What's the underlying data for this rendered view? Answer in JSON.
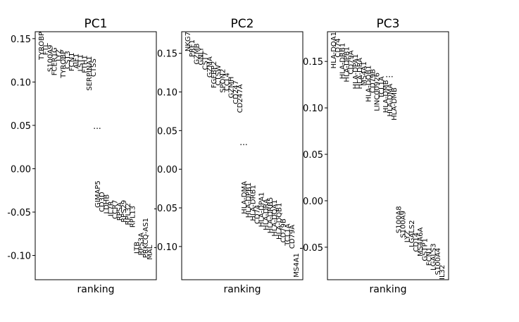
{
  "chart_data": [
    {
      "type": "scatter",
      "title": "PC1",
      "xlabel": "ranking",
      "ylabel": "",
      "ylim": [
        -0.128,
        0.158
      ],
      "yticks": [
        -0.1,
        -0.05,
        0.0,
        0.05,
        0.1,
        0.15
      ],
      "ytick_labels": [
        "-0.10",
        "-0.05",
        "0.00",
        "0.05",
        "0.10",
        "0.15"
      ],
      "ellipsis": "...",
      "genes": [
        {
          "name": "TYROBP",
          "rank": 1,
          "value": 0.158
        },
        {
          "name": "FTL",
          "rank": 2,
          "value": 0.145
        },
        {
          "name": "S100A9",
          "rank": 3,
          "value": 0.143
        },
        {
          "name": "FCER1G",
          "rank": 4,
          "value": 0.14
        },
        {
          "name": "LYZ",
          "rank": 5,
          "value": 0.138
        },
        {
          "name": "TYROBP",
          "rank": 6,
          "value": 0.137
        },
        {
          "name": "CST3",
          "rank": 7,
          "value": 0.136
        },
        {
          "name": "FCN1",
          "rank": 8,
          "value": 0.134
        },
        {
          "name": "AIF1",
          "rank": 9,
          "value": 0.133
        },
        {
          "name": "LST1",
          "rank": 10,
          "value": 0.132
        },
        {
          "name": "FTH1",
          "rank": 11,
          "value": 0.131
        },
        {
          "name": "SERPINA1",
          "rank": 12,
          "value": 0.13
        },
        {
          "name": "CTSS",
          "rank": 13,
          "value": 0.127
        },
        {
          "name": "GIMAP5",
          "rank": 14,
          "value": -0.045
        },
        {
          "name": "CD3D",
          "rank": 15,
          "value": -0.05
        },
        {
          "name": "LDHB",
          "rank": 16,
          "value": -0.052
        },
        {
          "name": "IL7R",
          "rank": 17,
          "value": -0.055
        },
        {
          "name": "CCR7",
          "rank": 18,
          "value": -0.058
        },
        {
          "name": "RPSA",
          "rank": 19,
          "value": -0.06
        },
        {
          "name": "RPS29",
          "rank": 20,
          "value": -0.062
        },
        {
          "name": "RPL32",
          "rank": 21,
          "value": -0.065
        },
        {
          "name": "RPL13",
          "rank": 22,
          "value": -0.068
        },
        {
          "name": "LTB",
          "rank": 23,
          "value": -0.098
        },
        {
          "name": "RPS3A",
          "rank": 24,
          "value": -0.1
        },
        {
          "name": "PRKCQ-AS1",
          "rank": 25,
          "value": -0.103
        },
        {
          "name": "MAL",
          "rank": 26,
          "value": -0.105
        }
      ]
    },
    {
      "type": "scatter",
      "title": "PC2",
      "xlabel": "ranking",
      "ylabel": "",
      "ylim": [
        -0.143,
        0.178
      ],
      "yticks": [
        -0.1,
        -0.05,
        0.0,
        0.05,
        0.1,
        0.15
      ],
      "ytick_labels": [
        "-0.10",
        "-0.05",
        "0.00",
        "0.05",
        "0.10",
        "0.15"
      ],
      "ellipsis": "...",
      "genes": [
        {
          "name": "NKG7",
          "rank": 1,
          "value": 0.178
        },
        {
          "name": "PRF1",
          "rank": 2,
          "value": 0.168
        },
        {
          "name": "GZMB",
          "rank": 3,
          "value": 0.163
        },
        {
          "name": "GNLY",
          "rank": 4,
          "value": 0.158
        },
        {
          "name": "CST7",
          "rank": 5,
          "value": 0.152
        },
        {
          "name": "GZMA",
          "rank": 6,
          "value": 0.146
        },
        {
          "name": "FGFBP2",
          "rank": 7,
          "value": 0.14
        },
        {
          "name": "CTSW",
          "rank": 8,
          "value": 0.135
        },
        {
          "name": "SPON2",
          "rank": 9,
          "value": 0.13
        },
        {
          "name": "CCL4",
          "rank": 10,
          "value": 0.125
        },
        {
          "name": "GZMH",
          "rank": 11,
          "value": 0.12
        },
        {
          "name": "CD247",
          "rank": 12,
          "value": 0.115
        },
        {
          "name": "CD247A",
          "rank": 13,
          "value": 0.11
        },
        {
          "name": "HLA-DMA",
          "rank": 14,
          "value": -0.058
        },
        {
          "name": "HLA-DPB1",
          "rank": 15,
          "value": -0.063
        },
        {
          "name": "HLA-DRB1",
          "rank": 16,
          "value": -0.067
        },
        {
          "name": "CD74",
          "rank": 17,
          "value": -0.071
        },
        {
          "name": "HLA-DPA1",
          "rank": 18,
          "value": -0.075
        },
        {
          "name": "HLA-DRA",
          "rank": 19,
          "value": -0.079
        },
        {
          "name": "HLA-DRB5",
          "rank": 20,
          "value": -0.083
        },
        {
          "name": "HLA-DQA1",
          "rank": 21,
          "value": -0.087
        },
        {
          "name": "HLA-DQB1",
          "rank": 22,
          "value": -0.091
        },
        {
          "name": "CD79B",
          "rank": 23,
          "value": -0.095
        },
        {
          "name": "TCL1A",
          "rank": 24,
          "value": -0.099
        },
        {
          "name": "CD79A",
          "rank": 25,
          "value": -0.103
        },
        {
          "name": "MS4A1",
          "rank": 26,
          "value": -0.14
        }
      ]
    },
    {
      "type": "scatter",
      "title": "PC3",
      "xlabel": "ranking",
      "ylabel": "",
      "ylim": [
        -0.085,
        0.182
      ],
      "yticks": [
        -0.05,
        0.0,
        0.05,
        0.1,
        0.15
      ],
      "ytick_labels": [
        "-0.05",
        "0.00",
        "0.05",
        "0.10",
        "0.15"
      ],
      "ellipsis": "...",
      "genes": [
        {
          "name": "HLA-DQA1",
          "rank": 1,
          "value": 0.182
        },
        {
          "name": "CD74",
          "rank": 2,
          "value": 0.175
        },
        {
          "name": "HLA-DRB1",
          "rank": 3,
          "value": 0.17
        },
        {
          "name": "HLA-DPB1",
          "rank": 4,
          "value": 0.166
        },
        {
          "name": "CD79A",
          "rank": 5,
          "value": 0.162
        },
        {
          "name": "HLA-DPA1",
          "rank": 6,
          "value": 0.158
        },
        {
          "name": "HLA-DRA",
          "rank": 7,
          "value": 0.154
        },
        {
          "name": "MS4A1",
          "rank": 8,
          "value": 0.15
        },
        {
          "name": "HLA-DQB1",
          "rank": 9,
          "value": 0.146
        },
        {
          "name": "CD79B",
          "rank": 10,
          "value": 0.142
        },
        {
          "name": "LINC00926",
          "rank": 11,
          "value": 0.138
        },
        {
          "name": "TCL1A",
          "rank": 12,
          "value": 0.134
        },
        {
          "name": "HLA-DMB",
          "rank": 13,
          "value": 0.13
        },
        {
          "name": "HLA-DMA",
          "rank": 14,
          "value": 0.126
        },
        {
          "name": "HLA-DMB",
          "rank": 15,
          "value": 0.122
        },
        {
          "name": "S100A8",
          "rank": 16,
          "value": -0.035
        },
        {
          "name": "S100A9",
          "rank": 17,
          "value": -0.04
        },
        {
          "name": "LYZ",
          "rank": 18,
          "value": -0.045
        },
        {
          "name": "LGALS2",
          "rank": 19,
          "value": -0.05
        },
        {
          "name": "CD14",
          "rank": 20,
          "value": -0.055
        },
        {
          "name": "MS4A6A",
          "rank": 21,
          "value": -0.06
        },
        {
          "name": "GSTP1",
          "rank": 22,
          "value": -0.065
        },
        {
          "name": "FCN1",
          "rank": 23,
          "value": -0.07
        },
        {
          "name": "LGALS3",
          "rank": 24,
          "value": -0.075
        },
        {
          "name": "S100A4",
          "rank": 25,
          "value": -0.08
        },
        {
          "name": "IL32",
          "rank": 26,
          "value": -0.085
        }
      ]
    }
  ]
}
